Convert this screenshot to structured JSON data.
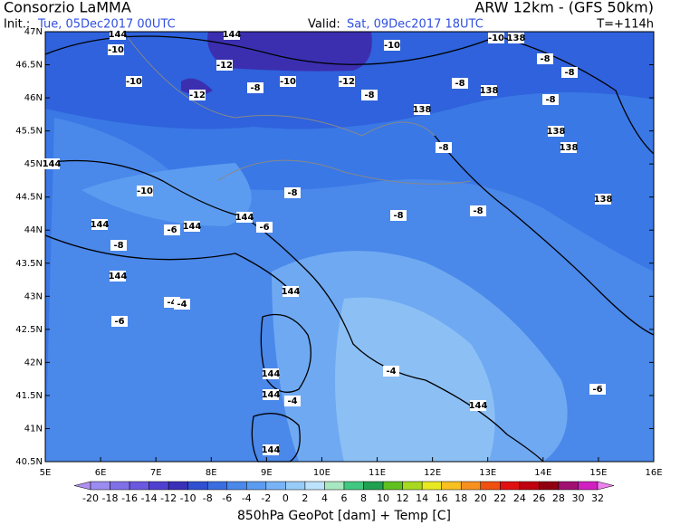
{
  "header": {
    "title": "Consorzio LaMMA",
    "model": "ARW 12km - (GFS 50km)",
    "init_label": "Init.:",
    "init": "Tue, 05Dec2017 00UTC",
    "valid_label": "Valid:",
    "valid": "Sat, 09Dec2017 18UTC",
    "lead": "T=+114h"
  },
  "map": {
    "lat_labels": [
      "47N",
      "46.5N",
      "46N",
      "45.5N",
      "45N",
      "44.5N",
      "44N",
      "43.5N",
      "43N",
      "42.5N",
      "42N",
      "41.5N",
      "41N",
      "40.5N"
    ],
    "lon_labels": [
      "5E",
      "6E",
      "7E",
      "8E",
      "9E",
      "10E",
      "11E",
      "12E",
      "13E",
      "14E",
      "15E",
      "16E"
    ],
    "contour_labels": [
      "144",
      "-10",
      "-10",
      "-12",
      "-12",
      "-8",
      "-10",
      "-12",
      "-10",
      "-8",
      "144",
      "-10",
      "138",
      "-8",
      "-8",
      "-8",
      "138",
      "138",
      "-8",
      "138",
      "138",
      "-8",
      "144",
      "-10",
      "-8",
      "138",
      "-8",
      "-8",
      "144",
      "144",
      "-6",
      "144",
      "-6",
      "-8",
      "144",
      "144",
      "-4",
      "-4",
      "-6",
      "144",
      "144",
      "-4",
      "-4",
      "144",
      "-6",
      "144"
    ]
  },
  "colorbar": {
    "ticks": [
      -20,
      -18,
      -16,
      -14,
      -12,
      -10,
      -8,
      -6,
      -4,
      -2,
      0,
      2,
      4,
      6,
      8,
      10,
      12,
      14,
      16,
      18,
      20,
      22,
      24,
      26,
      28,
      30,
      32
    ],
    "colors": [
      "#b090f0",
      "#9a8cf0",
      "#8070e8",
      "#6a58e0",
      "#5040d0",
      "#3a30b8",
      "#2f50d0",
      "#3a6ee0",
      "#4a88ea",
      "#5c9cf0",
      "#78b4f5",
      "#98ccf8",
      "#bde2fb",
      "#a8e8c0",
      "#40c880",
      "#20a050",
      "#60c020",
      "#a8d820",
      "#e8e820",
      "#f8c020",
      "#f89020",
      "#f05010",
      "#e01010",
      "#c00010",
      "#900010",
      "#a01070",
      "#d020c0",
      "#f080f0"
    ],
    "title": "850hPa GeoPot [dam] + Temp [C]"
  }
}
